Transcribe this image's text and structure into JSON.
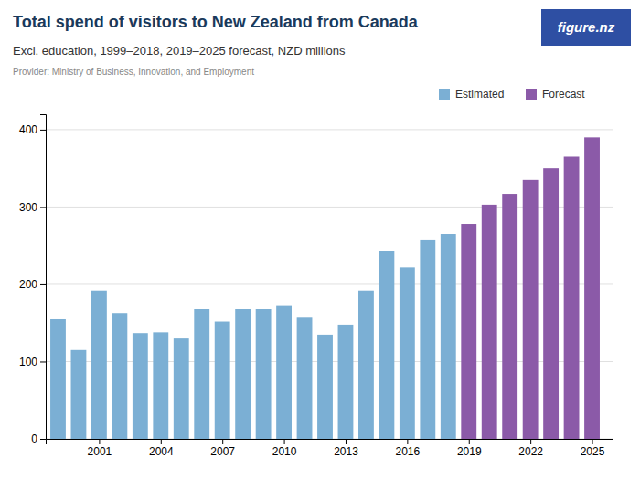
{
  "chart_data": {
    "type": "bar",
    "title": "Total spend of visitors to New Zealand from Canada",
    "subtitle": "Excl. education, 1999–2018, 2019–2025 forecast, NZD millions",
    "annotations": [
      "Provider: Ministry of Business, Innovation, and Employment",
      "figure.nz"
    ],
    "x": [
      1999,
      2000,
      2001,
      2002,
      2003,
      2004,
      2005,
      2006,
      2007,
      2008,
      2009,
      2010,
      2011,
      2012,
      2013,
      2014,
      2015,
      2016,
      2017,
      2018,
      2019,
      2020,
      2021,
      2022,
      2023,
      2024,
      2025
    ],
    "series": [
      {
        "name": "Estimated",
        "color": "#7bafd4",
        "values": [
          155,
          115,
          192,
          163,
          137,
          138,
          130,
          168,
          152,
          168,
          168,
          172,
          157,
          135,
          148,
          192,
          243,
          222,
          258,
          265,
          null,
          null,
          null,
          null,
          null,
          null,
          null
        ]
      },
      {
        "name": "Forecast",
        "color": "#8b5aa8",
        "values": [
          null,
          null,
          null,
          null,
          null,
          null,
          null,
          null,
          null,
          null,
          null,
          null,
          null,
          null,
          null,
          null,
          null,
          null,
          null,
          null,
          278,
          303,
          317,
          335,
          350,
          365,
          390
        ]
      }
    ],
    "xlim": [
      1998.4,
      2026.0
    ],
    "xticks": [
      2001,
      2004,
      2007,
      2010,
      2013,
      2016,
      2019,
      2022,
      2025
    ],
    "ylim": [
      0,
      420
    ],
    "yticks": [
      0,
      100,
      200,
      300,
      400
    ],
    "grid": true,
    "legend": "upper right"
  }
}
